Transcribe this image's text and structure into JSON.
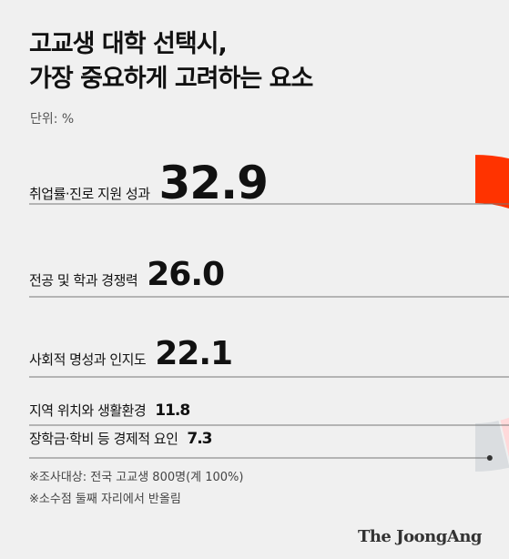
{
  "title_lines": [
    "고교생 대학 선택시,",
    "가장 중요하게 고려하는 요소"
  ],
  "unit": "단위: %",
  "chart_data": {
    "type": "donut",
    "categories": [
      "취업률·진로 지원 성과",
      "전공 및 학과 경쟁력",
      "사회적 명성과 인지도",
      "지역 위치와 생활환경",
      "장학금·학비 등 경제적 요인"
    ],
    "values": [
      32.9,
      26.0,
      22.1,
      11.8,
      7.3
    ],
    "value_labels": [
      "32.9",
      "26.0",
      "22.1",
      "11.8",
      "7.3"
    ],
    "colors": [
      "#ff3300",
      "#ff6f7a",
      "#ffacb0",
      "#ffd9da",
      "#dadde0"
    ]
  },
  "notes": [
    "※조사대상: 전국 고교생 800명(계 100%)",
    "※소수점 둘째 자리에서 반올림"
  ],
  "brand": "The JoongAng"
}
